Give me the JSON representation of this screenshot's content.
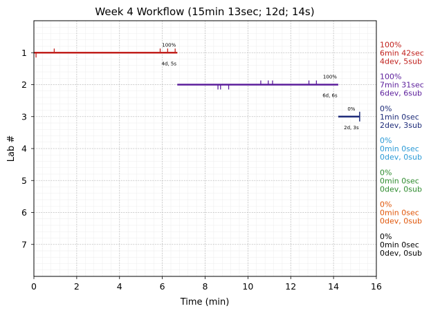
{
  "chart_data": {
    "type": "timeline",
    "title": "Week 4 Workflow (15min 13sec; 12d; 14s)",
    "xlabel": "Time (min)",
    "ylabel": "Lab #",
    "xlim": [
      0,
      16
    ],
    "ylim": [
      8,
      0
    ],
    "xticks": [
      "0",
      "2",
      "4",
      "6",
      "8",
      "10",
      "12",
      "14",
      "16"
    ],
    "yticks": [
      "1",
      "2",
      "3",
      "4",
      "5",
      "6",
      "7"
    ],
    "grid": true,
    "labs": [
      {
        "lab": 1,
        "color": "#c0201c",
        "start": 0.0,
        "end": 6.7,
        "pct_label": "100%",
        "counts_label": "4d, 5s",
        "side": [
          "100%",
          "6min 42sec",
          "4dev, 5sub"
        ],
        "up_ticks": [
          0.95,
          5.9,
          6.25,
          6.6
        ],
        "down_ticks": [
          0.1
        ]
      },
      {
        "lab": 2,
        "color": "#5b1d9b",
        "start": 6.7,
        "end": 14.22,
        "pct_label": "100%",
        "counts_label": "6d, 6s",
        "side": [
          "100%",
          "7min 31sec",
          "6dev, 6sub"
        ],
        "up_ticks": [
          10.6,
          10.95,
          11.15,
          12.85,
          13.2
        ],
        "down_ticks": [
          8.6,
          8.72,
          9.1
        ]
      },
      {
        "lab": 3,
        "color": "#1c2a78",
        "start": 14.22,
        "end": 15.22,
        "pct_label": "0%",
        "counts_label": "2d, 3s",
        "side": [
          "0%",
          "1min 0sec",
          "2dev, 3sub"
        ],
        "up_ticks": [],
        "down_ticks": [],
        "end_marker": true
      },
      {
        "lab": 4,
        "color": "#2a9ad6",
        "side": [
          "0%",
          "0min 0sec",
          "0dev, 0sub"
        ]
      },
      {
        "lab": 5,
        "color": "#2e8b2e",
        "side": [
          "0%",
          "0min 0sec",
          "0dev, 0sub"
        ]
      },
      {
        "lab": 6,
        "color": "#e0560a",
        "side": [
          "0%",
          "0min 0sec",
          "0dev, 0sub"
        ]
      },
      {
        "lab": 7,
        "color": "#000000",
        "side": [
          "0%",
          "0min 0sec",
          "0dev, 0sub"
        ]
      }
    ]
  }
}
